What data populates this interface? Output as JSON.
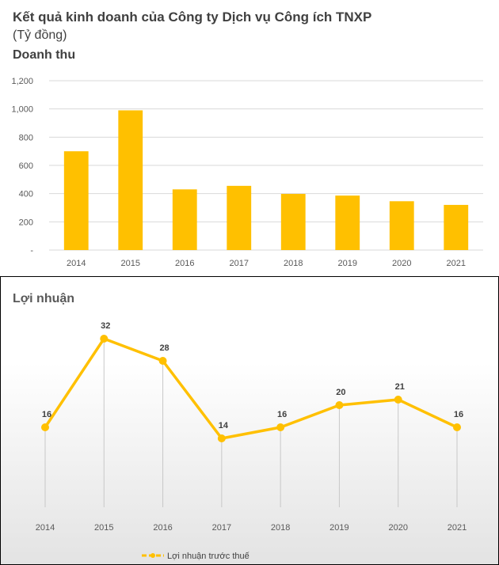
{
  "title": "Kết quả kinh doanh của Công ty Dịch vụ Công ích TNXP",
  "unit": "(Tỷ đồng)",
  "chart_data": [
    {
      "type": "bar",
      "title": "Doanh thu",
      "categories": [
        "2014",
        "2015",
        "2016",
        "2017",
        "2018",
        "2019",
        "2020",
        "2021"
      ],
      "values": [
        700,
        990,
        430,
        455,
        398,
        386,
        346,
        320
      ],
      "yticks": [
        "-",
        "200",
        "400",
        "600",
        "800",
        "1,000",
        "1,200"
      ],
      "ylim": [
        0,
        1200
      ],
      "grid": true,
      "color": "#ffc000"
    },
    {
      "type": "line",
      "title": "Lợi nhuận",
      "categories": [
        "2014",
        "2015",
        "2016",
        "2017",
        "2018",
        "2019",
        "2020",
        "2021"
      ],
      "values": [
        16,
        32,
        28,
        14,
        16,
        20,
        21,
        16
      ],
      "data_labels": [
        "16",
        "32",
        "28",
        "14",
        "16",
        "20",
        "21",
        "16"
      ],
      "legend": "Lợi nhuận trước thuế",
      "legend_position": "bottom-left",
      "color": "#ffc000"
    }
  ]
}
